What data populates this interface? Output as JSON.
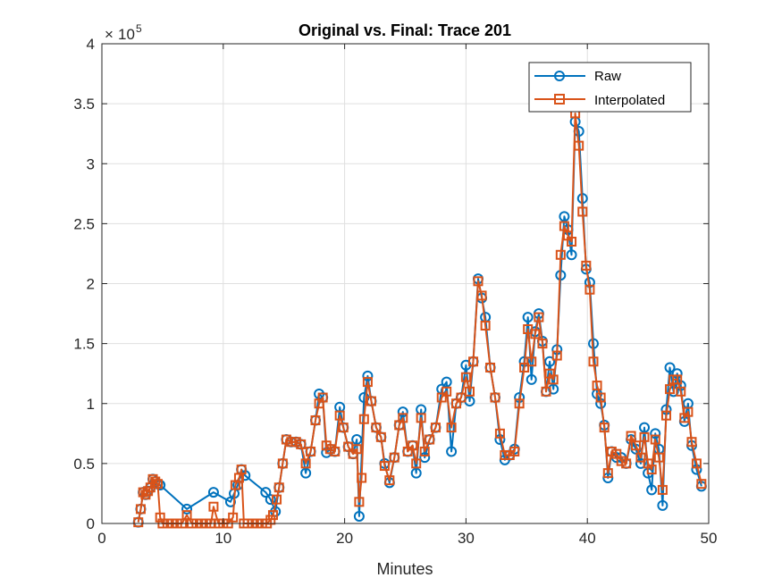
{
  "chart_data": {
    "type": "line",
    "title": "Original vs. Final: Trace 201",
    "xlabel": "Minutes",
    "ylabel": "",
    "y_exponent_label": "10",
    "y_exponent_prefix": "×",
    "y_exponent_power": "5",
    "xlim": [
      0,
      50
    ],
    "ylim": [
      0,
      4
    ],
    "x_ticks": [
      0,
      10,
      20,
      30,
      40,
      50
    ],
    "x_tick_labels": [
      "0",
      "10",
      "20",
      "30",
      "40",
      "50"
    ],
    "y_ticks": [
      0,
      0.5,
      1,
      1.5,
      2,
      2.5,
      3,
      3.5,
      4
    ],
    "y_tick_labels": [
      "0",
      "0.5",
      "1",
      "1.5",
      "2",
      "2.5",
      "3",
      "3.5",
      "4"
    ],
    "grid": true,
    "legend_position": "top-right",
    "series": [
      {
        "name": "Raw",
        "color": "#0072BD",
        "marker": "circle",
        "points": [
          [
            3.0,
            0.01
          ],
          [
            3.2,
            0.12
          ],
          [
            3.4,
            0.26
          ],
          [
            3.6,
            0.24
          ],
          [
            3.8,
            0.27
          ],
          [
            4.0,
            0.3
          ],
          [
            4.2,
            0.37
          ],
          [
            4.4,
            0.35
          ],
          [
            4.6,
            0.33
          ],
          [
            4.8,
            0.32
          ],
          [
            7.0,
            0.12
          ],
          [
            9.2,
            0.26
          ],
          [
            10.6,
            0.18
          ],
          [
            10.9,
            0.25
          ],
          [
            11.2,
            0.32
          ],
          [
            11.5,
            0.45
          ],
          [
            11.8,
            0.4
          ],
          [
            13.5,
            0.26
          ],
          [
            13.9,
            0.2
          ],
          [
            14.3,
            0.1
          ],
          [
            14.6,
            0.3
          ],
          [
            14.9,
            0.5
          ],
          [
            15.2,
            0.7
          ],
          [
            15.6,
            0.68
          ],
          [
            16.0,
            0.68
          ],
          [
            16.4,
            0.66
          ],
          [
            16.8,
            0.42
          ],
          [
            17.2,
            0.6
          ],
          [
            17.6,
            0.86
          ],
          [
            17.9,
            1.08
          ],
          [
            18.2,
            1.05
          ],
          [
            18.5,
            0.59
          ],
          [
            18.8,
            0.62
          ],
          [
            19.2,
            0.6
          ],
          [
            19.6,
            0.97
          ],
          [
            19.9,
            0.8
          ],
          [
            20.3,
            0.64
          ],
          [
            20.7,
            0.58
          ],
          [
            21.0,
            0.7
          ],
          [
            21.2,
            0.06
          ],
          [
            21.6,
            1.05
          ],
          [
            21.9,
            1.23
          ],
          [
            22.2,
            1.02
          ],
          [
            22.6,
            0.8
          ],
          [
            23.0,
            0.72
          ],
          [
            23.3,
            0.5
          ],
          [
            23.7,
            0.34
          ],
          [
            24.1,
            0.55
          ],
          [
            24.5,
            0.82
          ],
          [
            24.8,
            0.93
          ],
          [
            25.2,
            0.6
          ],
          [
            25.6,
            0.65
          ],
          [
            25.9,
            0.42
          ],
          [
            26.3,
            0.95
          ],
          [
            26.6,
            0.55
          ],
          [
            27.0,
            0.7
          ],
          [
            27.5,
            0.8
          ],
          [
            28.0,
            1.12
          ],
          [
            28.4,
            1.18
          ],
          [
            28.8,
            0.6
          ],
          [
            29.2,
            1.0
          ],
          [
            29.6,
            1.05
          ],
          [
            30.0,
            1.32
          ],
          [
            30.3,
            1.02
          ],
          [
            30.6,
            1.35
          ],
          [
            31.0,
            2.04
          ],
          [
            31.3,
            1.88
          ],
          [
            31.6,
            1.72
          ],
          [
            32.0,
            1.3
          ],
          [
            32.4,
            1.05
          ],
          [
            32.8,
            0.7
          ],
          [
            33.2,
            0.53
          ],
          [
            33.6,
            0.57
          ],
          [
            34.0,
            0.62
          ],
          [
            34.4,
            1.05
          ],
          [
            34.8,
            1.35
          ],
          [
            35.1,
            1.72
          ],
          [
            35.4,
            1.2
          ],
          [
            35.7,
            1.6
          ],
          [
            36.0,
            1.75
          ],
          [
            36.3,
            1.52
          ],
          [
            36.6,
            1.1
          ],
          [
            36.9,
            1.35
          ],
          [
            37.2,
            1.12
          ],
          [
            37.5,
            1.45
          ],
          [
            37.8,
            2.07
          ],
          [
            38.1,
            2.56
          ],
          [
            38.4,
            2.45
          ],
          [
            38.7,
            2.24
          ],
          [
            39.0,
            3.35
          ],
          [
            39.3,
            3.27
          ],
          [
            39.6,
            2.71
          ],
          [
            39.9,
            2.12
          ],
          [
            40.2,
            2.01
          ],
          [
            40.5,
            1.5
          ],
          [
            40.8,
            1.08
          ],
          [
            41.1,
            1.0
          ],
          [
            41.4,
            0.82
          ],
          [
            41.7,
            0.38
          ],
          [
            42.0,
            0.6
          ],
          [
            42.4,
            0.55
          ],
          [
            42.8,
            0.55
          ],
          [
            43.2,
            0.5
          ],
          [
            43.6,
            0.7
          ],
          [
            44.0,
            0.62
          ],
          [
            44.4,
            0.5
          ],
          [
            44.7,
            0.8
          ],
          [
            45.0,
            0.42
          ],
          [
            45.3,
            0.28
          ],
          [
            45.6,
            0.75
          ],
          [
            45.9,
            0.62
          ],
          [
            46.2,
            0.15
          ],
          [
            46.5,
            0.95
          ],
          [
            46.8,
            1.3
          ],
          [
            47.1,
            1.1
          ],
          [
            47.4,
            1.25
          ],
          [
            47.7,
            1.15
          ],
          [
            48.0,
            0.85
          ],
          [
            48.3,
            1.0
          ],
          [
            48.6,
            0.65
          ],
          [
            49.0,
            0.45
          ],
          [
            49.4,
            0.31
          ]
        ]
      },
      {
        "name": "Interpolated",
        "color": "#D95319",
        "marker": "square",
        "points": [
          [
            3.0,
            0.01
          ],
          [
            3.2,
            0.12
          ],
          [
            3.4,
            0.26
          ],
          [
            3.6,
            0.24
          ],
          [
            3.8,
            0.27
          ],
          [
            4.0,
            0.3
          ],
          [
            4.2,
            0.37
          ],
          [
            4.4,
            0.35
          ],
          [
            4.6,
            0.33
          ],
          [
            4.8,
            0.05
          ],
          [
            5.0,
            0.0
          ],
          [
            5.4,
            0.0
          ],
          [
            5.8,
            0.0
          ],
          [
            6.2,
            0.0
          ],
          [
            6.6,
            0.0
          ],
          [
            7.0,
            0.07
          ],
          [
            7.4,
            0.0
          ],
          [
            7.8,
            0.0
          ],
          [
            8.2,
            0.0
          ],
          [
            8.6,
            0.0
          ],
          [
            9.0,
            0.0
          ],
          [
            9.2,
            0.14
          ],
          [
            9.6,
            0.0
          ],
          [
            10.0,
            0.0
          ],
          [
            10.4,
            0.0
          ],
          [
            10.8,
            0.05
          ],
          [
            11.0,
            0.32
          ],
          [
            11.3,
            0.38
          ],
          [
            11.5,
            0.45
          ],
          [
            11.7,
            0.0
          ],
          [
            12.0,
            0.0
          ],
          [
            12.4,
            0.0
          ],
          [
            12.8,
            0.0
          ],
          [
            13.2,
            0.0
          ],
          [
            13.6,
            0.0
          ],
          [
            13.9,
            0.03
          ],
          [
            14.1,
            0.07
          ],
          [
            14.4,
            0.2
          ],
          [
            14.6,
            0.3
          ],
          [
            14.9,
            0.5
          ],
          [
            15.2,
            0.7
          ],
          [
            15.6,
            0.68
          ],
          [
            16.0,
            0.68
          ],
          [
            16.4,
            0.66
          ],
          [
            16.8,
            0.5
          ],
          [
            17.2,
            0.6
          ],
          [
            17.6,
            0.86
          ],
          [
            17.9,
            1.0
          ],
          [
            18.2,
            1.05
          ],
          [
            18.5,
            0.65
          ],
          [
            18.8,
            0.62
          ],
          [
            19.2,
            0.6
          ],
          [
            19.6,
            0.9
          ],
          [
            19.9,
            0.8
          ],
          [
            20.3,
            0.64
          ],
          [
            20.7,
            0.58
          ],
          [
            21.0,
            0.62
          ],
          [
            21.2,
            0.18
          ],
          [
            21.4,
            0.38
          ],
          [
            21.6,
            0.87
          ],
          [
            21.9,
            1.18
          ],
          [
            22.2,
            1.02
          ],
          [
            22.6,
            0.8
          ],
          [
            23.0,
            0.72
          ],
          [
            23.3,
            0.48
          ],
          [
            23.7,
            0.36
          ],
          [
            24.1,
            0.55
          ],
          [
            24.5,
            0.82
          ],
          [
            24.8,
            0.88
          ],
          [
            25.2,
            0.6
          ],
          [
            25.6,
            0.65
          ],
          [
            25.9,
            0.5
          ],
          [
            26.3,
            0.88
          ],
          [
            26.6,
            0.6
          ],
          [
            27.0,
            0.7
          ],
          [
            27.5,
            0.8
          ],
          [
            28.0,
            1.05
          ],
          [
            28.4,
            1.1
          ],
          [
            28.8,
            0.8
          ],
          [
            29.2,
            1.0
          ],
          [
            29.6,
            1.05
          ],
          [
            30.0,
            1.22
          ],
          [
            30.3,
            1.1
          ],
          [
            30.6,
            1.35
          ],
          [
            31.0,
            2.02
          ],
          [
            31.3,
            1.9
          ],
          [
            31.6,
            1.65
          ],
          [
            32.0,
            1.3
          ],
          [
            32.4,
            1.05
          ],
          [
            32.8,
            0.75
          ],
          [
            33.2,
            0.57
          ],
          [
            33.6,
            0.57
          ],
          [
            34.0,
            0.6
          ],
          [
            34.4,
            1.0
          ],
          [
            34.8,
            1.3
          ],
          [
            35.1,
            1.62
          ],
          [
            35.4,
            1.35
          ],
          [
            35.7,
            1.58
          ],
          [
            36.0,
            1.72
          ],
          [
            36.3,
            1.5
          ],
          [
            36.6,
            1.1
          ],
          [
            36.9,
            1.25
          ],
          [
            37.2,
            1.2
          ],
          [
            37.5,
            1.4
          ],
          [
            37.8,
            2.24
          ],
          [
            38.1,
            2.48
          ],
          [
            38.4,
            2.4
          ],
          [
            38.7,
            2.35
          ],
          [
            39.0,
            3.42
          ],
          [
            39.3,
            3.15
          ],
          [
            39.6,
            2.6
          ],
          [
            39.9,
            2.15
          ],
          [
            40.2,
            1.95
          ],
          [
            40.5,
            1.35
          ],
          [
            40.8,
            1.15
          ],
          [
            41.1,
            1.05
          ],
          [
            41.4,
            0.8
          ],
          [
            41.7,
            0.42
          ],
          [
            42.0,
            0.6
          ],
          [
            42.4,
            0.58
          ],
          [
            42.8,
            0.52
          ],
          [
            43.2,
            0.5
          ],
          [
            43.6,
            0.73
          ],
          [
            44.0,
            0.65
          ],
          [
            44.4,
            0.55
          ],
          [
            44.7,
            0.72
          ],
          [
            45.0,
            0.5
          ],
          [
            45.3,
            0.45
          ],
          [
            45.6,
            0.7
          ],
          [
            45.9,
            0.55
          ],
          [
            46.2,
            0.28
          ],
          [
            46.5,
            0.9
          ],
          [
            46.8,
            1.12
          ],
          [
            47.1,
            1.2
          ],
          [
            47.4,
            1.2
          ],
          [
            47.7,
            1.1
          ],
          [
            48.0,
            0.88
          ],
          [
            48.3,
            0.93
          ],
          [
            48.6,
            0.68
          ],
          [
            49.0,
            0.5
          ],
          [
            49.4,
            0.33
          ]
        ]
      }
    ]
  }
}
